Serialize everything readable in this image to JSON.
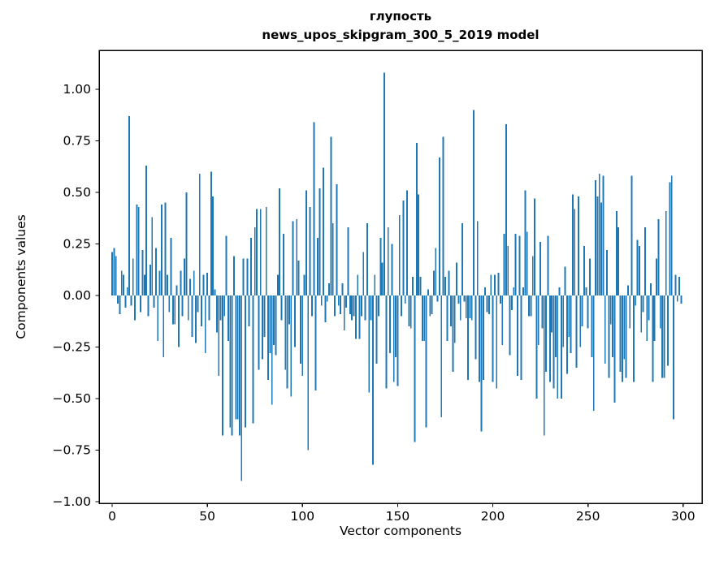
{
  "figure": {
    "background": "#ffffff",
    "spine_color": "#000000",
    "text_color": "#000000"
  },
  "chart_data": {
    "type": "bar",
    "title_line1": "глупость",
    "title_line2": "news_upos_skipgram_300_5_2019 model",
    "title": "глупость\nnews_upos_skipgram_300_5_2019 model",
    "xlabel": "Vector components",
    "ylabel": "Components values",
    "bar_color": "#1f77b4",
    "bar_rel_width": 0.8,
    "grid": false,
    "legend": "none",
    "xlim": [
      -6.83,
      309.9
    ],
    "ylim": [
      -1.008,
      1.189
    ],
    "x_ticks": [
      0,
      50,
      100,
      150,
      200,
      250,
      300
    ],
    "x_tick_labels": [
      "0",
      "50",
      "100",
      "150",
      "200",
      "250",
      "300"
    ],
    "y_ticks": [
      1.0,
      0.75,
      0.5,
      0.25,
      0.0,
      -0.25,
      -0.5,
      -0.75,
      -1.0
    ],
    "y_tick_labels": [
      "1.00",
      "0.75",
      "0.50",
      "0.25",
      "0.00",
      "−0.25",
      "−0.50",
      "−0.75",
      "−1.00"
    ],
    "x_start": 0,
    "values": [
      0.21,
      0.23,
      0.19,
      -0.04,
      -0.09,
      0.12,
      0.1,
      -0.06,
      0.04,
      0.87,
      -0.05,
      0.18,
      -0.12,
      0.44,
      0.43,
      -0.08,
      0.22,
      0.1,
      0.63,
      -0.1,
      0.15,
      0.38,
      -0.06,
      0.23,
      -0.22,
      0.12,
      0.44,
      -0.3,
      0.45,
      0.1,
      -0.08,
      0.28,
      -0.14,
      -0.14,
      0.05,
      -0.25,
      0.12,
      -0.1,
      0.18,
      0.5,
      -0.12,
      0.08,
      -0.2,
      0.12,
      -0.23,
      -0.08,
      0.59,
      -0.15,
      0.1,
      -0.28,
      0.11,
      -0.12,
      0.6,
      0.48,
      0.03,
      -0.18,
      -0.39,
      -0.12,
      -0.68,
      -0.1,
      0.29,
      -0.22,
      -0.64,
      -0.68,
      0.19,
      -0.6,
      -0.6,
      -0.68,
      -0.9,
      0.18,
      -0.64,
      0.18,
      -0.15,
      0.28,
      -0.62,
      0.33,
      0.42,
      -0.36,
      0.42,
      -0.31,
      -0.2,
      0.43,
      -0.41,
      -0.28,
      -0.53,
      -0.24,
      -0.29,
      0.1,
      0.52,
      -0.12,
      0.3,
      -0.36,
      -0.45,
      -0.14,
      -0.49,
      0.36,
      -0.25,
      0.37,
      0.17,
      -0.33,
      -0.39,
      0.1,
      0.51,
      -0.75,
      0.43,
      -0.1,
      0.84,
      -0.46,
      0.28,
      0.52,
      -0.05,
      0.62,
      -0.13,
      -0.03,
      0.06,
      0.77,
      0.35,
      -0.1,
      0.54,
      -0.05,
      -0.09,
      0.06,
      -0.17,
      -0.06,
      0.33,
      -0.09,
      -0.12,
      -0.1,
      -0.21,
      0.1,
      -0.21,
      -0.1,
      0.21,
      -0.12,
      0.35,
      -0.47,
      -0.12,
      -0.82,
      0.1,
      -0.33,
      -0.1,
      0.28,
      0.16,
      1.08,
      -0.45,
      0.33,
      -0.28,
      0.25,
      -0.42,
      -0.3,
      -0.44,
      0.39,
      -0.1,
      0.46,
      -0.04,
      0.51,
      -0.15,
      -0.16,
      0.09,
      -0.71,
      0.74,
      0.49,
      0.09,
      -0.22,
      -0.22,
      -0.64,
      0.03,
      -0.1,
      -0.09,
      0.12,
      0.23,
      -0.03,
      0.67,
      -0.59,
      0.77,
      0.09,
      -0.22,
      0.12,
      -0.15,
      -0.37,
      -0.23,
      0.16,
      -0.04,
      -0.12,
      0.35,
      -0.03,
      -0.11,
      -0.41,
      -0.11,
      -0.12,
      0.9,
      -0.31,
      0.36,
      -0.42,
      -0.66,
      -0.41,
      0.04,
      -0.08,
      -0.09,
      0.1,
      -0.42,
      0.1,
      -0.45,
      0.11,
      -0.04,
      -0.24,
      0.3,
      0.83,
      0.24,
      -0.29,
      -0.07,
      0.04,
      0.3,
      -0.39,
      0.29,
      -0.41,
      0.04,
      0.51,
      0.31,
      -0.1,
      -0.1,
      0.19,
      0.47,
      -0.5,
      -0.24,
      0.26,
      -0.16,
      -0.68,
      -0.37,
      0.29,
      -0.42,
      -0.18,
      -0.45,
      -0.3,
      -0.5,
      0.04,
      -0.5,
      -0.25,
      0.14,
      -0.38,
      -0.2,
      -0.28,
      0.49,
      0.42,
      -0.35,
      0.48,
      -0.25,
      -0.15,
      0.24,
      0.04,
      -0.16,
      0.18,
      -0.3,
      -0.56,
      0.56,
      0.48,
      0.59,
      0.45,
      0.58,
      -0.33,
      0.22,
      -0.4,
      -0.14,
      -0.3,
      -0.52,
      0.41,
      0.33,
      -0.37,
      -0.42,
      -0.31,
      -0.4,
      0.05,
      -0.16,
      0.58,
      -0.42,
      -0.05,
      0.27,
      0.24,
      -0.18,
      -0.08,
      0.33,
      -0.22,
      -0.12,
      0.06,
      -0.42,
      -0.22,
      0.18,
      0.37,
      -0.16,
      -0.4,
      -0.4,
      0.41,
      -0.34,
      0.55,
      0.58,
      -0.6,
      0.1,
      -0.03,
      0.09,
      -0.04
    ]
  }
}
